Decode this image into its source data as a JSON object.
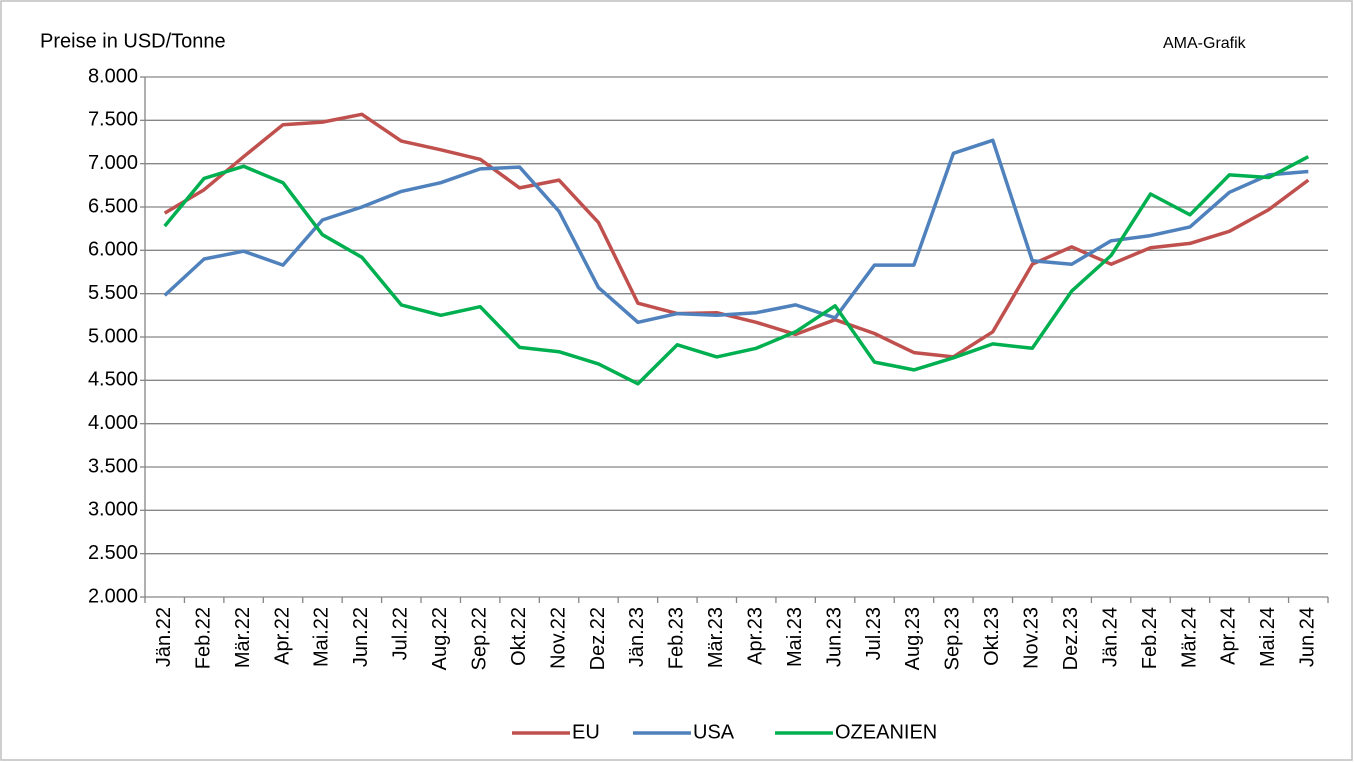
{
  "chart_data": {
    "type": "line",
    "title": "Preise in USD/Tonne",
    "annotation": "AMA-Grafik",
    "categories": [
      "Jän.22",
      "Feb.22",
      "Mär.22",
      "Apr.22",
      "Mai.22",
      "Jun.22",
      "Jul.22",
      "Aug.22",
      "Sep.22",
      "Okt.22",
      "Nov.22",
      "Dez.22",
      "Jän.23",
      "Feb.23",
      "Mär.23",
      "Apr.23",
      "Mai.23",
      "Jun.23",
      "Jul.23",
      "Aug.23",
      "Sep.23",
      "Okt.23",
      "Nov.23",
      "Dez.23",
      "Jän.24",
      "Feb.24",
      "Mär.24",
      "Apr.24",
      "Mai.24",
      "Jun.24"
    ],
    "series": [
      {
        "name": "EU",
        "color": "#c0504d",
        "values": [
          6430,
          6700,
          7080,
          7450,
          7480,
          7570,
          7260,
          7160,
          7050,
          6720,
          6810,
          6320,
          5390,
          5270,
          5280,
          5170,
          5030,
          5200,
          5040,
          4820,
          4770,
          5060,
          5840,
          6040,
          5840,
          6030,
          6080,
          6220,
          6470,
          6810
        ]
      },
      {
        "name": "USA",
        "color": "#4f81bd",
        "values": [
          5480,
          5900,
          5990,
          5830,
          6350,
          6500,
          6680,
          6780,
          6940,
          6960,
          6450,
          5570,
          5170,
          5270,
          5250,
          5280,
          5370,
          5220,
          5830,
          5830,
          7120,
          7270,
          5880,
          5840,
          6110,
          6170,
          6270,
          6670,
          6870,
          6910
        ]
      },
      {
        "name": "OZEANIEN",
        "color": "#00b050",
        "values": [
          6280,
          6830,
          6970,
          6780,
          6180,
          5920,
          5370,
          5250,
          5350,
          4880,
          4830,
          4690,
          4460,
          4910,
          4770,
          4870,
          5060,
          5360,
          4710,
          4620,
          4760,
          4920,
          4870,
          5530,
          5940,
          6650,
          6410,
          6870,
          6840,
          7080
        ]
      }
    ],
    "ylim": [
      2000,
      8000
    ],
    "yticks": [
      {
        "value": 2000,
        "label": "2.000"
      },
      {
        "value": 2500,
        "label": "2.500"
      },
      {
        "value": 3000,
        "label": "3.000"
      },
      {
        "value": 3500,
        "label": "3.500"
      },
      {
        "value": 4000,
        "label": "4.000"
      },
      {
        "value": 4500,
        "label": "4.500"
      },
      {
        "value": 5000,
        "label": "5.000"
      },
      {
        "value": 5500,
        "label": "5.500"
      },
      {
        "value": 6000,
        "label": "6.000"
      },
      {
        "value": 6500,
        "label": "6.500"
      },
      {
        "value": 7000,
        "label": "7.000"
      },
      {
        "value": 7500,
        "label": "7.500"
      },
      {
        "value": 8000,
        "label": "8.000"
      }
    ],
    "grid": true,
    "legend": "bottom"
  }
}
